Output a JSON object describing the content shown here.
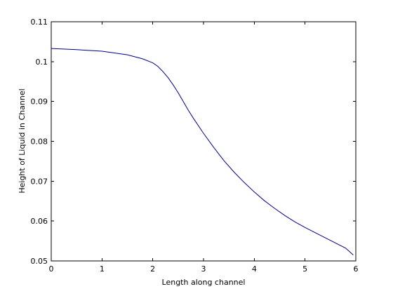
{
  "chart_data": {
    "type": "line",
    "title": "",
    "xlabel": "Length along channel",
    "ylabel": "Height of Liquid in Channel",
    "xlim": [
      0,
      6
    ],
    "ylim": [
      0.05,
      0.11
    ],
    "xticks": [
      0,
      1,
      2,
      3,
      4,
      5,
      6
    ],
    "yticks": [
      0.05,
      0.06,
      0.07,
      0.08,
      0.09,
      0.1,
      0.11
    ],
    "xtick_labels": [
      "0",
      "1",
      "2",
      "3",
      "4",
      "5",
      "6"
    ],
    "ytick_labels": [
      "0.05",
      "0.06",
      "0.07",
      "0.08",
      "0.09",
      "0.1",
      "0.11"
    ],
    "grid": false,
    "legend": "none",
    "series": [
      {
        "color": "#00008b",
        "x": [
          0,
          0.5,
          1.0,
          1.5,
          1.8,
          2.0,
          2.1,
          2.2,
          2.3,
          2.4,
          2.5,
          2.6,
          2.7,
          2.8,
          3.0,
          3.2,
          3.4,
          3.6,
          3.8,
          4.0,
          4.2,
          4.4,
          4.6,
          4.8,
          5.0,
          5.2,
          5.4,
          5.6,
          5.8,
          5.95
        ],
        "y": [
          0.1033,
          0.103,
          0.1026,
          0.1017,
          0.1007,
          0.0997,
          0.0988,
          0.0975,
          0.096,
          0.0942,
          0.0922,
          0.09,
          0.0878,
          0.0858,
          0.082,
          0.0785,
          0.0752,
          0.0723,
          0.0697,
          0.0673,
          0.0651,
          0.0632,
          0.0614,
          0.0598,
          0.0584,
          0.0571,
          0.0558,
          0.0545,
          0.0532,
          0.0515
        ]
      }
    ]
  }
}
